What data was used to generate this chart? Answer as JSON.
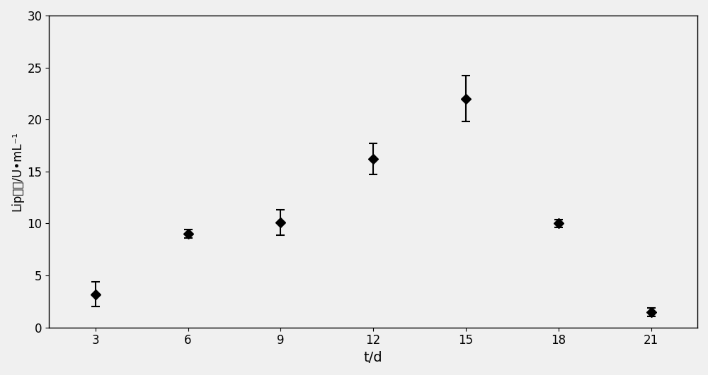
{
  "x": [
    3,
    6,
    9,
    12,
    15,
    18,
    21
  ],
  "y": [
    3.2,
    9.0,
    10.1,
    16.2,
    22.0,
    10.0,
    1.5
  ],
  "yerr": [
    1.2,
    0.4,
    1.2,
    1.5,
    2.2,
    0.4,
    0.4
  ],
  "xlabel": "t/d",
  "ylabel": "Lip酶活/U•mL⁻¹",
  "xlim": [
    1.5,
    22.5
  ],
  "ylim": [
    0,
    30
  ],
  "xticks": [
    3,
    6,
    9,
    12,
    15,
    18,
    21
  ],
  "yticks": [
    0,
    5,
    10,
    15,
    20,
    25,
    30
  ],
  "line_color": "#000000",
  "marker": "D",
  "markersize": 7,
  "markerfacecolor": "#000000",
  "linewidth": 1.5,
  "background_color": "#f0f0f0",
  "figure_background": "#f0f0f0"
}
